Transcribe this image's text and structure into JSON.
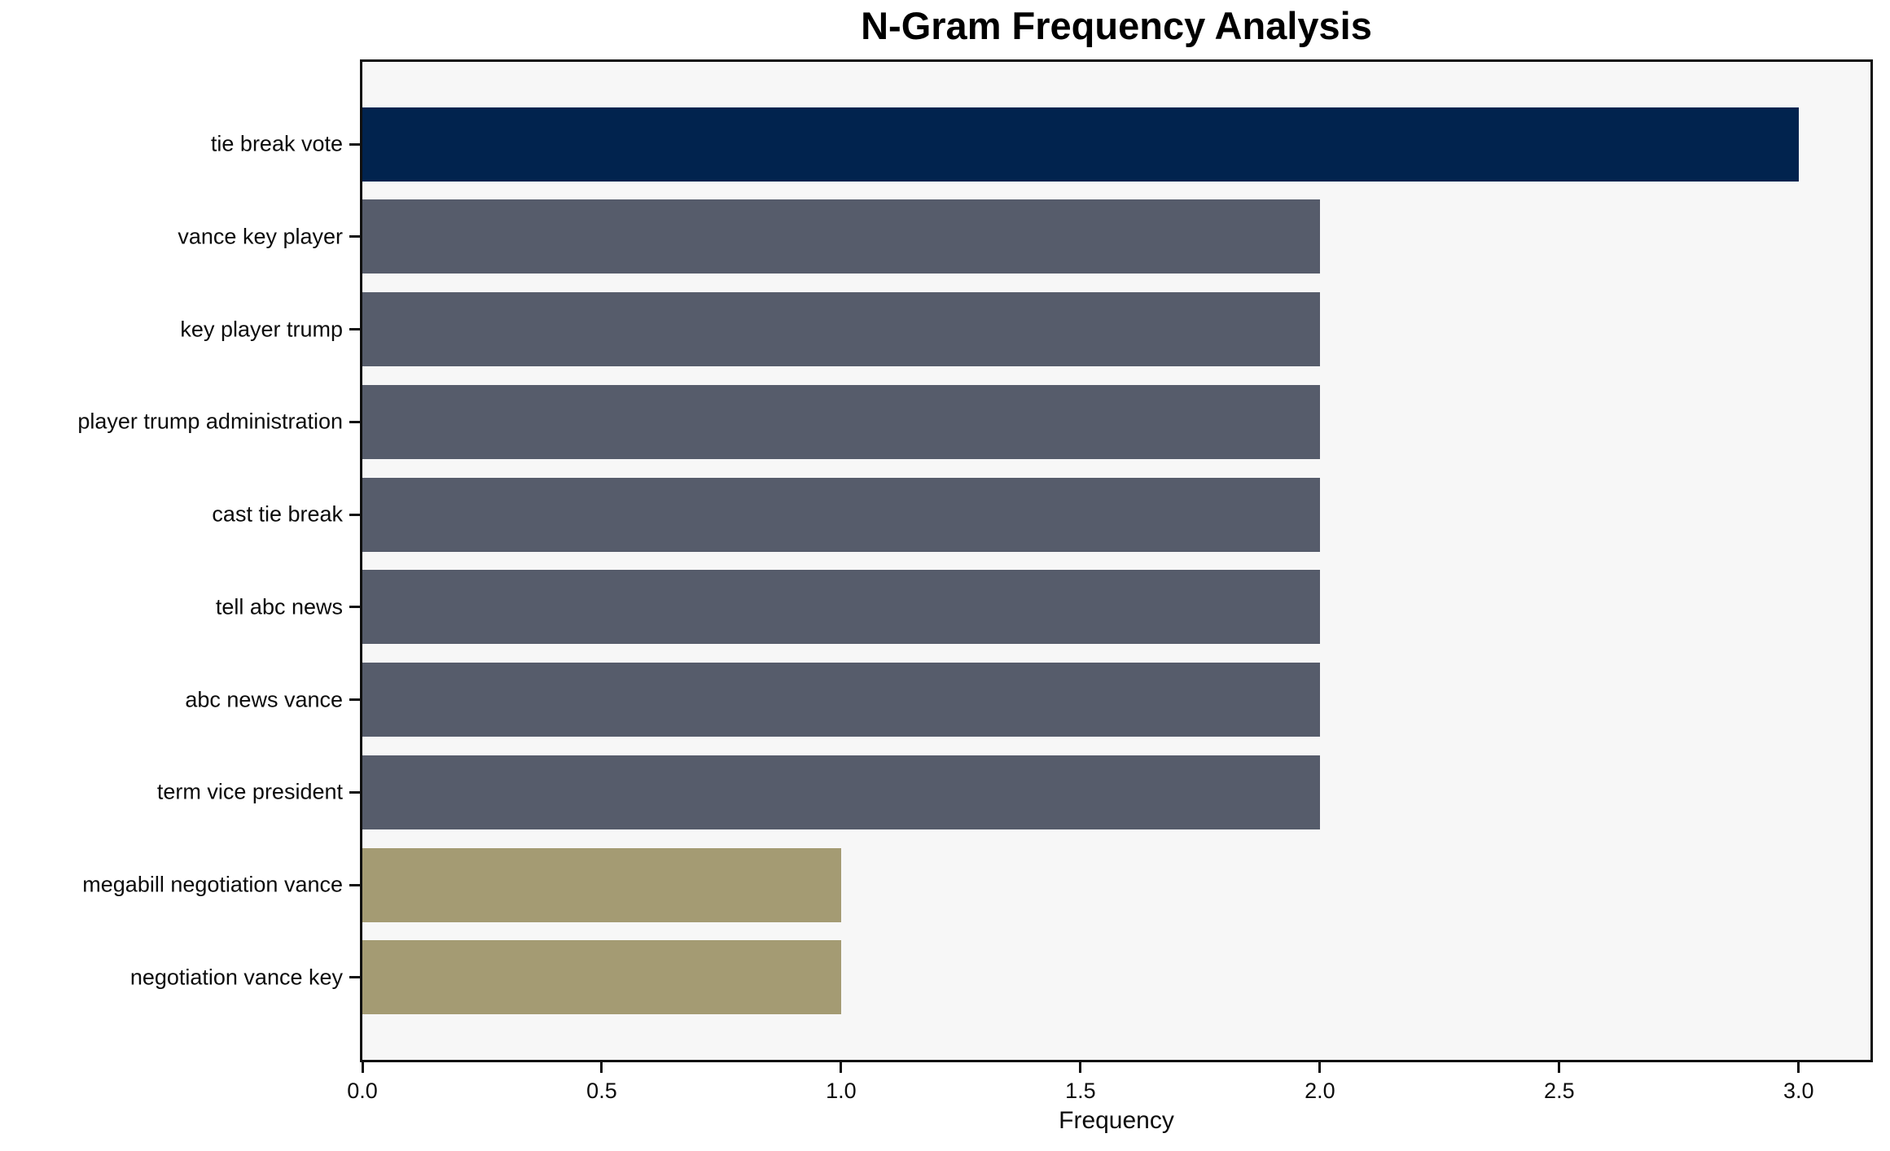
{
  "chart_data": {
    "type": "bar",
    "orientation": "horizontal",
    "title": "N-Gram Frequency Analysis",
    "xlabel": "Frequency",
    "ylabel": "",
    "categories": [
      "tie break vote",
      "vance key player",
      "key player trump",
      "player trump administration",
      "cast tie break",
      "tell abc news",
      "abc news vance",
      "term vice president",
      "megabill negotiation vance",
      "negotiation vance key"
    ],
    "values": [
      3,
      2,
      2,
      2,
      2,
      2,
      2,
      2,
      1,
      1
    ],
    "bar_colors": [
      "#01234e",
      "#565c6b",
      "#565c6b",
      "#565c6b",
      "#565c6b",
      "#565c6b",
      "#565c6b",
      "#565c6b",
      "#a49b73",
      "#a49b73"
    ],
    "xlim": [
      0,
      3.15
    ],
    "xticks": [
      0.0,
      0.5,
      1.0,
      1.5,
      2.0,
      2.5,
      3.0
    ],
    "xtick_labels": [
      "0.0",
      "0.5",
      "1.0",
      "1.5",
      "2.0",
      "2.5",
      "3.0"
    ],
    "grid": false,
    "legend": null,
    "plot_bg": "#f7f7f7",
    "fig_bg": "#ffffff",
    "spine_color": "#101010",
    "text_color": "#0c0c0c"
  }
}
